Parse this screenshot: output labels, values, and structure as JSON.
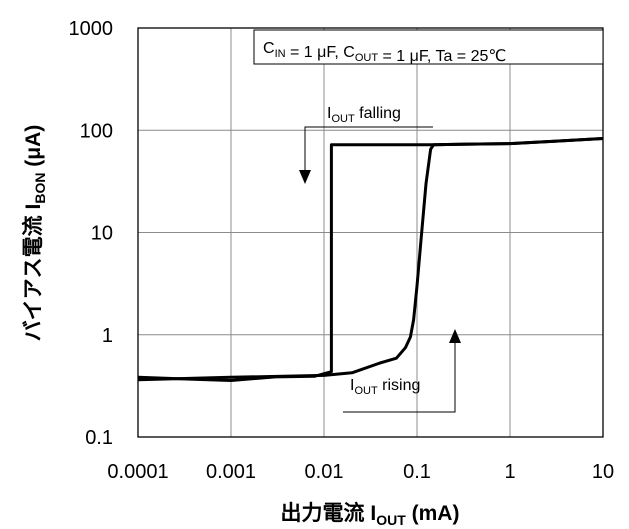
{
  "chart_data": {
    "type": "line",
    "title": "",
    "conditions": {
      "parts": [
        {
          "t": "C",
          "s": "IN"
        },
        {
          "t": " = 1 μF, C",
          "s": "OUT"
        },
        {
          "t": " = 1 μF, Ta = 25℃",
          "s": ""
        }
      ]
    },
    "x_scale": "log",
    "y_scale": "log",
    "xlim": [
      0.0001,
      10
    ],
    "ylim": [
      0.1,
      1000
    ],
    "x_ticks": [
      "0.0001",
      "0.001",
      "0.01",
      "0.1",
      "1",
      "10"
    ],
    "y_ticks": [
      "0.1",
      "1",
      "10",
      "100",
      "1000"
    ],
    "xlabel": {
      "prefix": "出力電流 I",
      "sub": "OUT",
      "suffix": " (mA)"
    },
    "ylabel": {
      "prefix": "バイアス電流 I",
      "sub": "BON",
      "suffix": " (μA)"
    },
    "grid": true,
    "annotations": [
      {
        "main": "I",
        "sub": "OUT",
        "rest": " falling"
      },
      {
        "main": "I",
        "sub": "OUT",
        "rest": " rising"
      }
    ],
    "series": [
      {
        "x": [
          0.0001,
          0.0003,
          0.001,
          0.003,
          0.008,
          0.012,
          0.012,
          0.03,
          0.1,
          0.15,
          0.3,
          1,
          3,
          10
        ],
        "y": [
          0.37,
          0.37,
          0.37,
          0.38,
          0.4,
          0.42,
          72,
          72,
          72,
          72,
          73,
          74,
          78,
          83
        ]
      },
      {
        "x": [
          0.0001,
          0.001,
          0.01,
          0.02,
          0.04,
          0.06,
          0.075,
          0.085,
          0.092,
          0.1,
          0.11,
          0.125,
          0.14,
          0.15,
          0.3,
          1,
          3,
          10
        ],
        "y": [
          0.37,
          0.37,
          0.4,
          0.44,
          0.52,
          0.6,
          0.72,
          0.95,
          1.4,
          3,
          8,
          30,
          65,
          72,
          73,
          74,
          78,
          83
        ]
      }
    ]
  }
}
